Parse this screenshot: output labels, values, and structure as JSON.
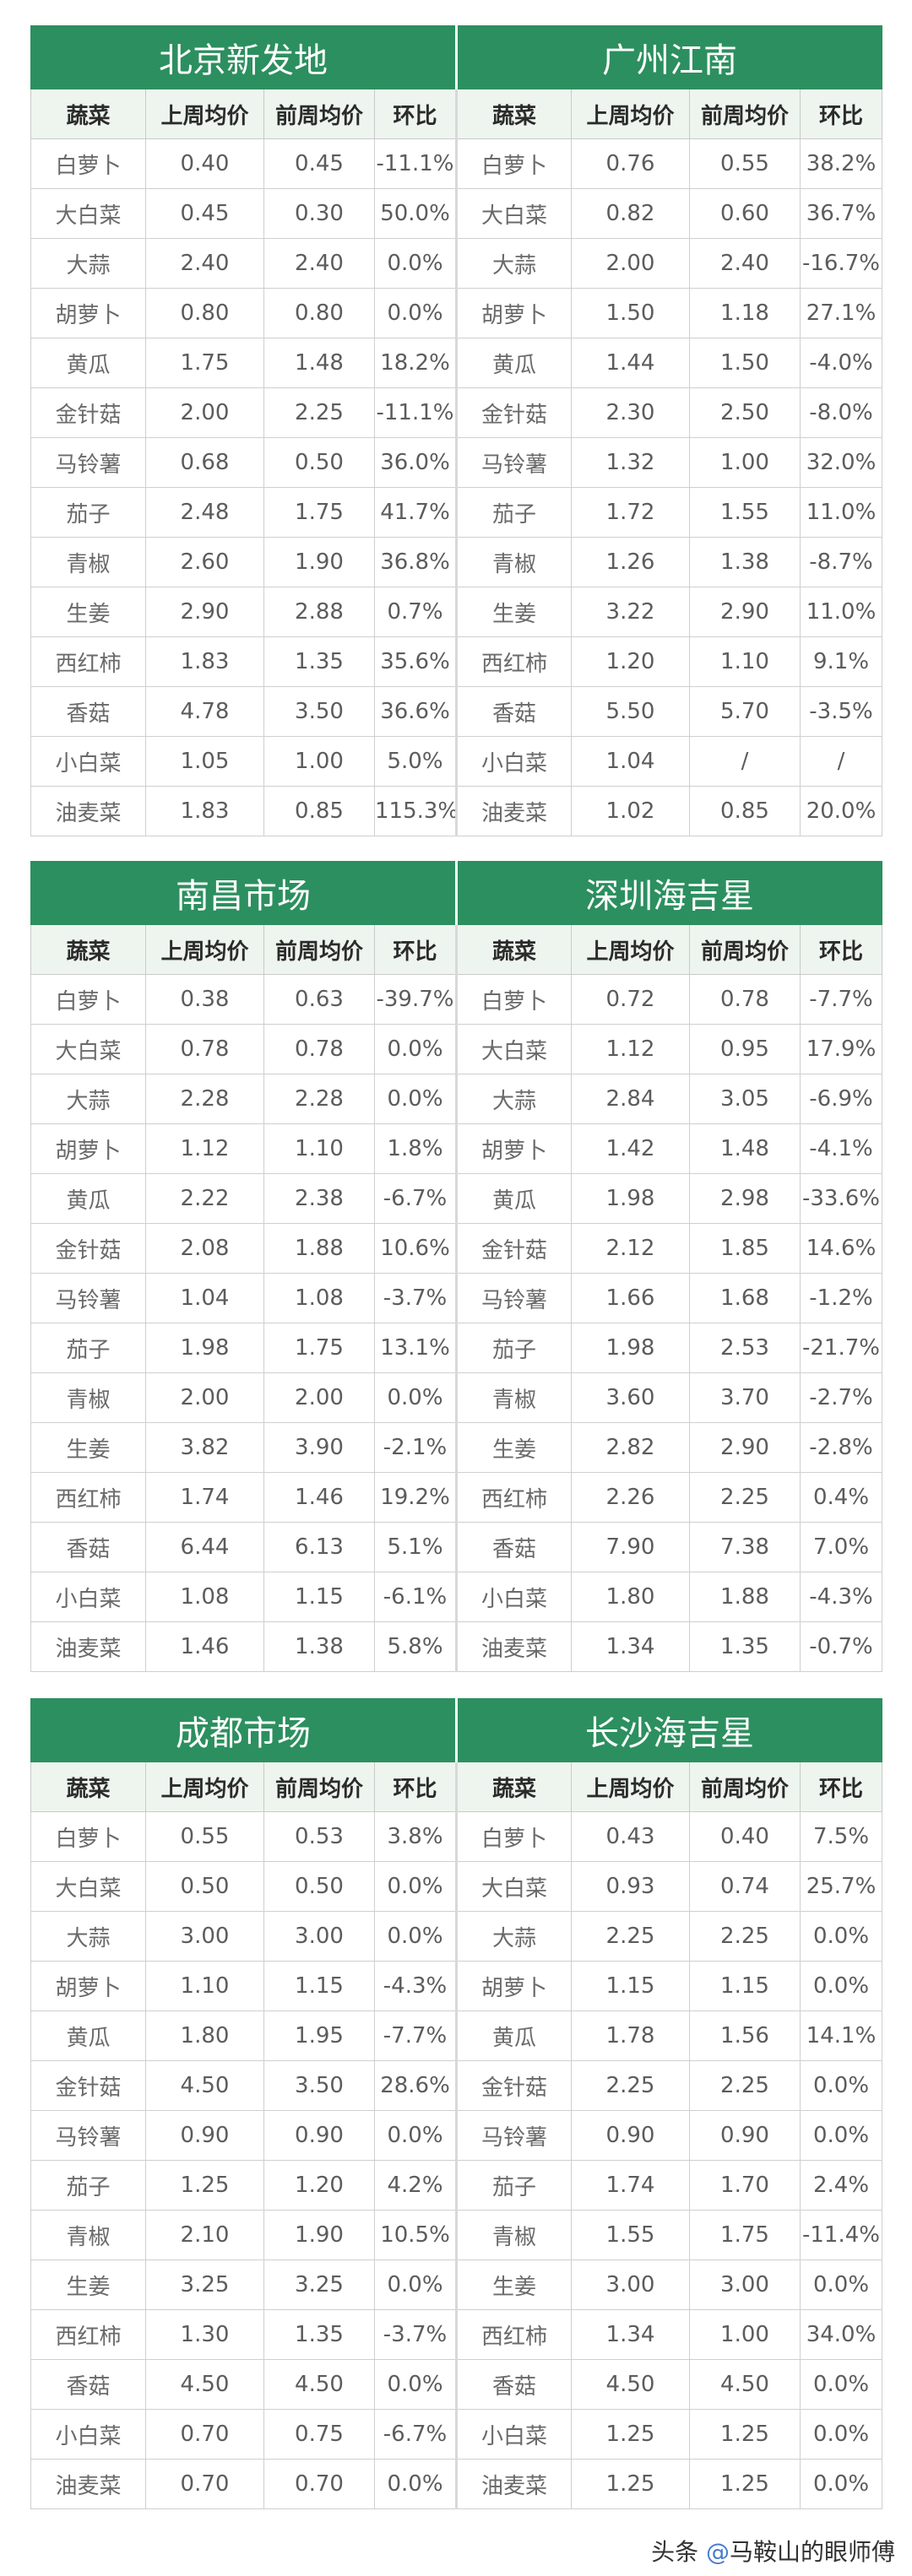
{
  "header_columns": [
    "蔬菜",
    "上周均价",
    "前周均价",
    "环比"
  ],
  "sections": [
    {
      "left": {
        "title": "北京新发地",
        "rows": [
          [
            "白萝卜",
            "0.40",
            "0.45",
            "-11.1%"
          ],
          [
            "大白菜",
            "0.45",
            "0.30",
            "50.0%"
          ],
          [
            "大蒜",
            "2.40",
            "2.40",
            "0.0%"
          ],
          [
            "胡萝卜",
            "0.80",
            "0.80",
            "0.0%"
          ],
          [
            "黄瓜",
            "1.75",
            "1.48",
            "18.2%"
          ],
          [
            "金针菇",
            "2.00",
            "2.25",
            "-11.1%"
          ],
          [
            "马铃薯",
            "0.68",
            "0.50",
            "36.0%"
          ],
          [
            "茄子",
            "2.48",
            "1.75",
            "41.7%"
          ],
          [
            "青椒",
            "2.60",
            "1.90",
            "36.8%"
          ],
          [
            "生姜",
            "2.90",
            "2.88",
            "0.7%"
          ],
          [
            "西红柿",
            "1.83",
            "1.35",
            "35.6%"
          ],
          [
            "香菇",
            "4.78",
            "3.50",
            "36.6%"
          ],
          [
            "小白菜",
            "1.05",
            "1.00",
            "5.0%"
          ],
          [
            "油麦菜",
            "1.83",
            "0.85",
            "115.3%"
          ]
        ]
      },
      "right": {
        "title": "广州江南",
        "rows": [
          [
            "白萝卜",
            "0.76",
            "0.55",
            "38.2%"
          ],
          [
            "大白菜",
            "0.82",
            "0.60",
            "36.7%"
          ],
          [
            "大蒜",
            "2.00",
            "2.40",
            "-16.7%"
          ],
          [
            "胡萝卜",
            "1.50",
            "1.18",
            "27.1%"
          ],
          [
            "黄瓜",
            "1.44",
            "1.50",
            "-4.0%"
          ],
          [
            "金针菇",
            "2.30",
            "2.50",
            "-8.0%"
          ],
          [
            "马铃薯",
            "1.32",
            "1.00",
            "32.0%"
          ],
          [
            "茄子",
            "1.72",
            "1.55",
            "11.0%"
          ],
          [
            "青椒",
            "1.26",
            "1.38",
            "-8.7%"
          ],
          [
            "生姜",
            "3.22",
            "2.90",
            "11.0%"
          ],
          [
            "西红柿",
            "1.20",
            "1.10",
            "9.1%"
          ],
          [
            "香菇",
            "5.50",
            "5.70",
            "-3.5%"
          ],
          [
            "小白菜",
            "1.04",
            "/",
            "/"
          ],
          [
            "油麦菜",
            "1.02",
            "0.85",
            "20.0%"
          ]
        ]
      }
    },
    {
      "left": {
        "title": "南昌市场",
        "rows": [
          [
            "白萝卜",
            "0.38",
            "0.63",
            "-39.7%"
          ],
          [
            "大白菜",
            "0.78",
            "0.78",
            "0.0%"
          ],
          [
            "大蒜",
            "2.28",
            "2.28",
            "0.0%"
          ],
          [
            "胡萝卜",
            "1.12",
            "1.10",
            "1.8%"
          ],
          [
            "黄瓜",
            "2.22",
            "2.38",
            "-6.7%"
          ],
          [
            "金针菇",
            "2.08",
            "1.88",
            "10.6%"
          ],
          [
            "马铃薯",
            "1.04",
            "1.08",
            "-3.7%"
          ],
          [
            "茄子",
            "1.98",
            "1.75",
            "13.1%"
          ],
          [
            "青椒",
            "2.00",
            "2.00",
            "0.0%"
          ],
          [
            "生姜",
            "3.82",
            "3.90",
            "-2.1%"
          ],
          [
            "西红柿",
            "1.74",
            "1.46",
            "19.2%"
          ],
          [
            "香菇",
            "6.44",
            "6.13",
            "5.1%"
          ],
          [
            "小白菜",
            "1.08",
            "1.15",
            "-6.1%"
          ],
          [
            "油麦菜",
            "1.46",
            "1.38",
            "5.8%"
          ]
        ]
      },
      "right": {
        "title": "深圳海吉星",
        "rows": [
          [
            "白萝卜",
            "0.72",
            "0.78",
            "-7.7%"
          ],
          [
            "大白菜",
            "1.12",
            "0.95",
            "17.9%"
          ],
          [
            "大蒜",
            "2.84",
            "3.05",
            "-6.9%"
          ],
          [
            "胡萝卜",
            "1.42",
            "1.48",
            "-4.1%"
          ],
          [
            "黄瓜",
            "1.98",
            "2.98",
            "-33.6%"
          ],
          [
            "金针菇",
            "2.12",
            "1.85",
            "14.6%"
          ],
          [
            "马铃薯",
            "1.66",
            "1.68",
            "-1.2%"
          ],
          [
            "茄子",
            "1.98",
            "2.53",
            "-21.7%"
          ],
          [
            "青椒",
            "3.60",
            "3.70",
            "-2.7%"
          ],
          [
            "生姜",
            "2.82",
            "2.90",
            "-2.8%"
          ],
          [
            "西红柿",
            "2.26",
            "2.25",
            "0.4%"
          ],
          [
            "香菇",
            "7.90",
            "7.38",
            "7.0%"
          ],
          [
            "小白菜",
            "1.80",
            "1.88",
            "-4.3%"
          ],
          [
            "油麦菜",
            "1.34",
            "1.35",
            "-0.7%"
          ]
        ]
      }
    },
    {
      "left": {
        "title": "成都市场",
        "rows": [
          [
            "白萝卜",
            "0.55",
            "0.53",
            "3.8%"
          ],
          [
            "大白菜",
            "0.50",
            "0.50",
            "0.0%"
          ],
          [
            "大蒜",
            "3.00",
            "3.00",
            "0.0%"
          ],
          [
            "胡萝卜",
            "1.10",
            "1.15",
            "-4.3%"
          ],
          [
            "黄瓜",
            "1.80",
            "1.95",
            "-7.7%"
          ],
          [
            "金针菇",
            "4.50",
            "3.50",
            "28.6%"
          ],
          [
            "马铃薯",
            "0.90",
            "0.90",
            "0.0%"
          ],
          [
            "茄子",
            "1.25",
            "1.20",
            "4.2%"
          ],
          [
            "青椒",
            "2.10",
            "1.90",
            "10.5%"
          ],
          [
            "生姜",
            "3.25",
            "3.25",
            "0.0%"
          ],
          [
            "西红柿",
            "1.30",
            "1.35",
            "-3.7%"
          ],
          [
            "香菇",
            "4.50",
            "4.50",
            "0.0%"
          ],
          [
            "小白菜",
            "0.70",
            "0.75",
            "-6.7%"
          ],
          [
            "油麦菜",
            "0.70",
            "0.70",
            "0.0%"
          ]
        ]
      },
      "right": {
        "title": "长沙海吉星",
        "rows": [
          [
            "白萝卜",
            "0.43",
            "0.40",
            "7.5%"
          ],
          [
            "大白菜",
            "0.93",
            "0.74",
            "25.7%"
          ],
          [
            "大蒜",
            "2.25",
            "2.25",
            "0.0%"
          ],
          [
            "胡萝卜",
            "1.15",
            "1.15",
            "0.0%"
          ],
          [
            "黄瓜",
            "1.78",
            "1.56",
            "14.1%"
          ],
          [
            "金针菇",
            "2.25",
            "2.25",
            "0.0%"
          ],
          [
            "马铃薯",
            "0.90",
            "0.90",
            "0.0%"
          ],
          [
            "茄子",
            "1.74",
            "1.70",
            "2.4%"
          ],
          [
            "青椒",
            "1.55",
            "1.75",
            "-11.4%"
          ],
          [
            "生姜",
            "3.00",
            "3.00",
            "0.0%"
          ],
          [
            "西红柿",
            "1.34",
            "1.00",
            "34.0%"
          ],
          [
            "香菇",
            "4.50",
            "4.50",
            "0.0%"
          ],
          [
            "小白菜",
            "1.25",
            "1.25",
            "0.0%"
          ],
          [
            "油麦菜",
            "1.25",
            "1.25",
            "0.0%"
          ]
        ]
      }
    }
  ],
  "watermark": {
    "prefix": "头条 ",
    "at": "@",
    "name": "马鞍山的眼师傅"
  },
  "colors": {
    "title_bg": "#2c8f5f",
    "header_bg": "#eef5ef",
    "grid": "#cfcfcf"
  }
}
